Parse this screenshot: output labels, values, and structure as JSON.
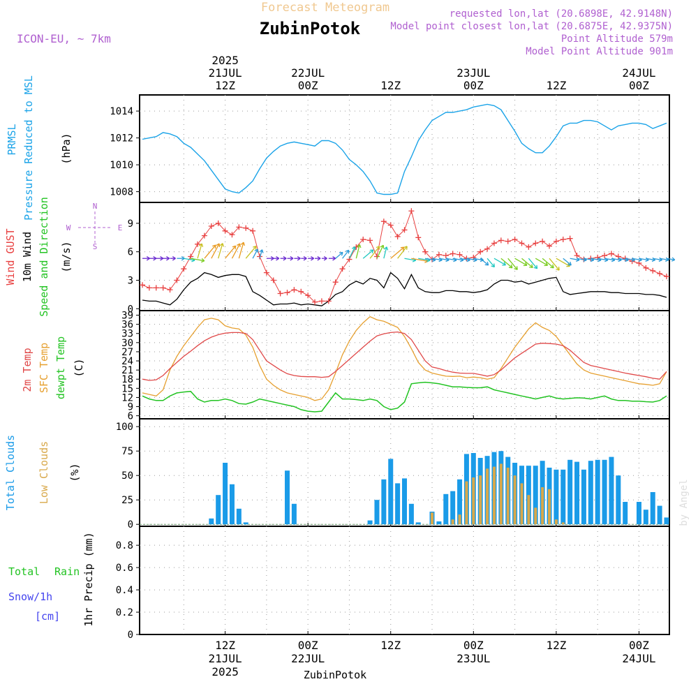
{
  "header": {
    "super_title": "Forecast Meteogram",
    "location": "ZubinPotok",
    "model": "ICON-EU, ~ 7km",
    "info_lines": [
      "requested lon,lat (20.6898E, 42.9148N)",
      "Model point closest lon,lat (20.6875E, 42.9375N)",
      "Point Altitude 579m",
      "Model Point Altitude 901m"
    ],
    "footer_location": "ZubinPotok",
    "watermark": "by Angel"
  },
  "colors": {
    "pressure": "#1aa3e8",
    "gust": "#e84040",
    "wind": "#000000",
    "wind_label": "#22c322",
    "t2m": "#e04848",
    "sfc": "#e6a030",
    "dewpt": "#22c322",
    "total_cloud": "#1a9be8",
    "low_cloud": "#d8a84a",
    "rain": "#22c322",
    "snow": "#4444ee",
    "accent_purple": "#b060d0",
    "grid": "#999999"
  },
  "top_axis": {
    "labels": [
      {
        "x_h": 12,
        "lines": [
          "2025",
          "21JUL",
          "12Z"
        ]
      },
      {
        "x_h": 24,
        "lines": [
          "22JUL",
          "00Z"
        ]
      },
      {
        "x_h": 36,
        "lines": [
          "12Z"
        ]
      },
      {
        "x_h": 48,
        "lines": [
          "23JUL",
          "00Z"
        ]
      },
      {
        "x_h": 60,
        "lines": [
          "12Z"
        ]
      },
      {
        "x_h": 72,
        "lines": [
          "24JUL",
          "00Z"
        ]
      }
    ]
  },
  "bottom_axis": {
    "labels": [
      {
        "x_h": 12,
        "lines": [
          "12Z",
          "21JUL",
          "2025"
        ]
      },
      {
        "x_h": 24,
        "lines": [
          "00Z",
          "22JUL"
        ]
      },
      {
        "x_h": 36,
        "lines": [
          "12Z"
        ]
      },
      {
        "x_h": 48,
        "lines": [
          "00Z",
          "23JUL"
        ]
      },
      {
        "x_h": 60,
        "lines": [
          "12Z"
        ]
      },
      {
        "x_h": 72,
        "lines": [
          "00Z",
          "24JUL"
        ]
      }
    ]
  },
  "chart_data": [
    {
      "type": "line",
      "id": "pressure",
      "side_labels": [
        "PRMSL",
        "Pressure Reduced to MSL"
      ],
      "ylabel": "(hPa)",
      "yticks": [
        1008,
        1010,
        1012,
        1014
      ],
      "ylim": [
        1007.2,
        1015.2
      ],
      "grid": true,
      "x": [
        0,
        1,
        2,
        3,
        4,
        5,
        6,
        7,
        8,
        9,
        10,
        11,
        12,
        13,
        14,
        15,
        16,
        17,
        18,
        19,
        20,
        21,
        22,
        23,
        24,
        25,
        26,
        27,
        28,
        29,
        30,
        31,
        32,
        33,
        34,
        35,
        36,
        37,
        38,
        39,
        40,
        41,
        42,
        43,
        44,
        45,
        46,
        47,
        48,
        49,
        50,
        51,
        52,
        53,
        54,
        55,
        56,
        57,
        58,
        59,
        60,
        61,
        62,
        63,
        64,
        65,
        66,
        67,
        68,
        69,
        70,
        71,
        72,
        73,
        74,
        75,
        76
      ],
      "series": [
        {
          "key": "prmsl",
          "values": [
            1011.9,
            1012.0,
            1012.1,
            1012.4,
            1012.3,
            1012.1,
            1011.6,
            1011.3,
            1010.8,
            1010.3,
            1009.6,
            1008.9,
            1008.2,
            1008.0,
            1007.9,
            1008.3,
            1008.8,
            1009.7,
            1010.5,
            1011.0,
            1011.4,
            1011.6,
            1011.7,
            1011.6,
            1011.5,
            1011.4,
            1011.8,
            1011.8,
            1011.6,
            1011.1,
            1010.4,
            1010.0,
            1009.5,
            1008.8,
            1007.9,
            1007.8,
            1007.8,
            1007.9,
            1009.5,
            1010.6,
            1011.8,
            1012.6,
            1013.3,
            1013.6,
            1013.9,
            1013.9,
            1014.0,
            1014.1,
            1014.3,
            1014.4,
            1014.5,
            1014.4,
            1014.1,
            1013.3,
            1012.5,
            1011.6,
            1011.2,
            1010.9,
            1010.9,
            1011.4,
            1012.1,
            1012.9,
            1013.1,
            1013.1,
            1013.3,
            1013.3,
            1013.2,
            1012.9,
            1012.6,
            1012.9,
            1013.0,
            1013.1,
            1013.1,
            1013.0,
            1012.7,
            1012.9,
            1013.1
          ]
        }
      ]
    },
    {
      "type": "line",
      "id": "wind",
      "side_labels": [
        "Wind GUST",
        "10m Wind",
        "Speed and Direction"
      ],
      "ylabel": "(m/s)",
      "compass": [
        "N",
        "S",
        "W",
        "E"
      ],
      "yticks": [
        0,
        3,
        6,
        9
      ],
      "ylim": [
        -0.2,
        11.2
      ],
      "grid": true,
      "x": [
        0,
        1,
        2,
        3,
        4,
        5,
        6,
        7,
        8,
        9,
        10,
        11,
        12,
        13,
        14,
        15,
        16,
        17,
        18,
        19,
        20,
        21,
        22,
        23,
        24,
        25,
        26,
        27,
        28,
        29,
        30,
        31,
        32,
        33,
        34,
        35,
        36,
        37,
        38,
        39,
        40,
        41,
        42,
        43,
        44,
        45,
        46,
        47,
        48,
        49,
        50,
        51,
        52,
        53,
        54,
        55,
        56,
        57,
        58,
        59,
        60,
        61,
        62,
        63,
        64,
        65,
        66,
        67,
        68,
        69,
        70,
        71,
        72,
        73,
        74,
        75,
        76
      ],
      "series": [
        {
          "key": "gust",
          "name": "Wind GUST",
          "values": [
            2.5,
            2.2,
            2.2,
            2.2,
            2.0,
            3.0,
            4.2,
            5.5,
            6.8,
            7.7,
            8.7,
            9.0,
            8.2,
            7.8,
            8.6,
            8.5,
            8.2,
            5.5,
            3.8,
            3.0,
            1.6,
            1.7,
            2.0,
            1.8,
            1.4,
            0.7,
            0.8,
            0.8,
            2.8,
            4.2,
            5.2,
            6.5,
            7.3,
            7.2,
            5.5,
            9.2,
            8.8,
            7.6,
            8.3,
            10.3,
            7.5,
            6.0,
            5.2,
            5.7,
            5.6,
            5.8,
            5.7,
            5.3,
            5.4,
            6.0,
            6.3,
            6.9,
            7.2,
            7.1,
            7.3,
            6.9,
            6.5,
            6.9,
            7.1,
            6.6,
            7.1,
            7.3,
            7.4,
            5.6,
            5.2,
            5.3,
            5.4,
            5.6,
            5.8,
            5.5,
            5.3,
            5.0,
            4.8,
            4.3,
            4.0,
            3.7,
            3.4
          ]
        },
        {
          "key": "w10",
          "name": "10m Wind",
          "values": [
            0.9,
            0.8,
            0.8,
            0.6,
            0.4,
            1.0,
            2.0,
            2.8,
            3.2,
            3.8,
            3.6,
            3.3,
            3.5,
            3.6,
            3.6,
            3.4,
            1.8,
            1.4,
            0.9,
            0.4,
            0.5,
            0.5,
            0.6,
            0.4,
            0.5,
            0.4,
            0.3,
            0.8,
            1.5,
            1.8,
            2.5,
            2.9,
            2.6,
            3.2,
            3.0,
            2.2,
            3.8,
            3.2,
            2.1,
            3.6,
            2.2,
            1.8,
            1.7,
            1.7,
            1.9,
            1.9,
            1.8,
            1.8,
            1.7,
            1.8,
            2.0,
            2.6,
            3.0,
            3.0,
            2.8,
            2.9,
            2.6,
            2.8,
            3.0,
            3.2,
            3.3,
            1.8,
            1.5,
            1.6,
            1.7,
            1.8,
            1.8,
            1.8,
            1.7,
            1.7,
            1.6,
            1.6,
            1.6,
            1.5,
            1.5,
            1.4,
            1.2
          ]
        }
      ]
    },
    {
      "type": "line",
      "id": "temperature",
      "side_labels": [
        "2m Temp",
        "SFC Temp",
        "dewpt Temp"
      ],
      "ylabel": "(C)",
      "yticks": [
        6,
        9,
        12,
        15,
        18,
        21,
        24,
        27,
        30,
        33,
        36,
        39
      ],
      "ylim": [
        5,
        40.5
      ],
      "grid": true,
      "x": [
        0,
        1,
        2,
        3,
        4,
        5,
        6,
        7,
        8,
        9,
        10,
        11,
        12,
        13,
        14,
        15,
        16,
        17,
        18,
        19,
        20,
        21,
        22,
        23,
        24,
        25,
        26,
        27,
        28,
        29,
        30,
        31,
        32,
        33,
        34,
        35,
        36,
        37,
        38,
        39,
        40,
        41,
        42,
        43,
        44,
        45,
        46,
        47,
        48,
        49,
        50,
        51,
        52,
        53,
        54,
        55,
        56,
        57,
        58,
        59,
        60,
        61,
        62,
        63,
        64,
        65,
        66,
        67,
        68,
        69,
        70,
        71,
        72,
        73,
        74,
        75,
        76
      ],
      "series": [
        {
          "key": "t2m",
          "name": "2m Temp",
          "values": [
            18.0,
            17.6,
            17.8,
            19.2,
            21.5,
            23.5,
            25.5,
            27.2,
            29.0,
            30.6,
            31.8,
            32.6,
            33.1,
            33.3,
            33.3,
            33.0,
            31.0,
            27.5,
            24.0,
            22.5,
            21.0,
            19.8,
            19.2,
            18.9,
            18.8,
            18.8,
            18.6,
            18.8,
            20.5,
            22.5,
            24.5,
            26.5,
            28.5,
            30.5,
            32.2,
            32.9,
            33.3,
            33.5,
            33.0,
            31.0,
            27.5,
            24.0,
            22.0,
            21.5,
            20.8,
            20.3,
            20.0,
            19.9,
            19.9,
            19.5,
            19.0,
            19.5,
            21.0,
            23.0,
            25.0,
            26.5,
            28.0,
            29.5,
            29.8,
            29.7,
            29.5,
            29.0,
            27.5,
            25.5,
            23.5,
            22.5,
            22.0,
            21.5,
            21.0,
            20.5,
            20.0,
            19.6,
            19.2,
            18.8,
            18.3,
            18.0,
            20.5
          ]
        },
        {
          "key": "sfc",
          "name": "SFC Temp",
          "values": [
            13.5,
            13.0,
            12.5,
            14.5,
            21.0,
            25.5,
            29.0,
            32.0,
            35.0,
            37.5,
            38.0,
            37.5,
            35.5,
            34.8,
            34.5,
            32.5,
            28.5,
            22.5,
            18.0,
            16.0,
            14.5,
            13.5,
            13.0,
            12.5,
            12.0,
            11.0,
            11.5,
            14.5,
            20.0,
            26.0,
            30.5,
            34.0,
            36.5,
            38.5,
            37.5,
            37.0,
            36.0,
            35.0,
            32.0,
            28.0,
            23.5,
            21.0,
            20.0,
            19.5,
            19.0,
            18.9,
            19.0,
            18.5,
            18.7,
            18.5,
            18.0,
            18.5,
            21.5,
            25.0,
            28.5,
            31.5,
            34.5,
            36.5,
            35.0,
            34.0,
            32.0,
            29.0,
            26.0,
            23.0,
            21.0,
            20.0,
            19.5,
            19.0,
            18.5,
            18.0,
            17.5,
            17.0,
            16.5,
            16.3,
            16.0,
            16.5,
            20.5
          ]
        },
        {
          "key": "dew",
          "name": "dewpt Temp",
          "values": [
            12.5,
            11.5,
            11.0,
            11.0,
            12.5,
            13.5,
            13.8,
            14.0,
            11.5,
            10.5,
            11.0,
            11.0,
            11.5,
            11.0,
            10.0,
            9.8,
            10.5,
            11.5,
            11.0,
            10.5,
            10.0,
            9.5,
            9.0,
            8.0,
            7.5,
            7.3,
            7.5,
            10.5,
            13.5,
            11.5,
            11.5,
            11.3,
            11.0,
            11.5,
            11.0,
            9.0,
            8.0,
            8.5,
            10.5,
            16.5,
            16.8,
            17.0,
            16.8,
            16.5,
            16.0,
            15.5,
            15.5,
            15.3,
            15.2,
            15.2,
            15.5,
            14.5,
            14.0,
            13.5,
            13.0,
            12.5,
            12.0,
            11.5,
            12.0,
            12.5,
            11.8,
            11.5,
            11.7,
            11.9,
            11.8,
            11.5,
            12.0,
            12.5,
            11.5,
            11.0,
            11.0,
            10.8,
            10.8,
            10.6,
            10.5,
            11.0,
            12.5
          ]
        }
      ]
    },
    {
      "type": "bar",
      "id": "clouds",
      "side_labels": [
        "Total Clouds",
        "Low Clouds"
      ],
      "ylabel": "(%)",
      "yticks": [
        0,
        25,
        50,
        75,
        100
      ],
      "ylim": [
        -2,
        108
      ],
      "grid": true,
      "x": [
        0,
        1,
        2,
        3,
        4,
        5,
        6,
        7,
        8,
        9,
        10,
        11,
        12,
        13,
        14,
        15,
        16,
        17,
        18,
        19,
        20,
        21,
        22,
        23,
        24,
        25,
        26,
        27,
        28,
        29,
        30,
        31,
        32,
        33,
        34,
        35,
        36,
        37,
        38,
        39,
        40,
        41,
        42,
        43,
        44,
        45,
        46,
        47,
        48,
        49,
        50,
        51,
        52,
        53,
        54,
        55,
        56,
        57,
        58,
        59,
        60,
        61,
        62,
        63,
        64,
        65,
        66,
        67,
        68,
        69,
        70,
        71,
        72,
        73,
        74,
        75,
        76
      ],
      "series": [
        {
          "key": "total",
          "name": "Total Clouds",
          "values": [
            0,
            0,
            0,
            0,
            0,
            0,
            0,
            0,
            0,
            0,
            6,
            30,
            63,
            41,
            16,
            2,
            0,
            0,
            0,
            0,
            0,
            55,
            21,
            0,
            0,
            0,
            0,
            0,
            0,
            0,
            0,
            0,
            0,
            4,
            25,
            46,
            67,
            42,
            47,
            21,
            2,
            0,
            13,
            3,
            31,
            34,
            46,
            72,
            73,
            68,
            70,
            74,
            75,
            69,
            63,
            60,
            60,
            60,
            65,
            58,
            56,
            56,
            66,
            64,
            56,
            65,
            66,
            66,
            69,
            50,
            23,
            0,
            23,
            15,
            33,
            19,
            7
          ]
        },
        {
          "key": "low",
          "name": "Low Clouds",
          "values": [
            0,
            0,
            0,
            0,
            0,
            0,
            0,
            0,
            0,
            0,
            0,
            0,
            0,
            0,
            0,
            0,
            0,
            0,
            0,
            0,
            0,
            0,
            0,
            0,
            0,
            0,
            0,
            0,
            0,
            0,
            0,
            0,
            0,
            0,
            0,
            0,
            0,
            0,
            0,
            0,
            0,
            0,
            12,
            0,
            0,
            5,
            10,
            44,
            48,
            50,
            57,
            59,
            62,
            58,
            50,
            42,
            30,
            17,
            38,
            36,
            5,
            2,
            0,
            0,
            0,
            0,
            0,
            0,
            0,
            0,
            0,
            0,
            0,
            0,
            0,
            0,
            0
          ]
        }
      ]
    },
    {
      "type": "bar",
      "id": "precip",
      "side_labels": [
        "Total",
        "Rain",
        "Snow/1h",
        "[cm]"
      ],
      "ylabel": "1hr Precip (mm)",
      "yticks": [
        "0",
        "0.2",
        "0.4",
        "0.6",
        "0.8"
      ],
      "ylim": [
        0,
        0.97
      ],
      "grid": true,
      "series": [
        {
          "key": "rain",
          "name": "Total Rain",
          "values": []
        }
      ]
    }
  ]
}
